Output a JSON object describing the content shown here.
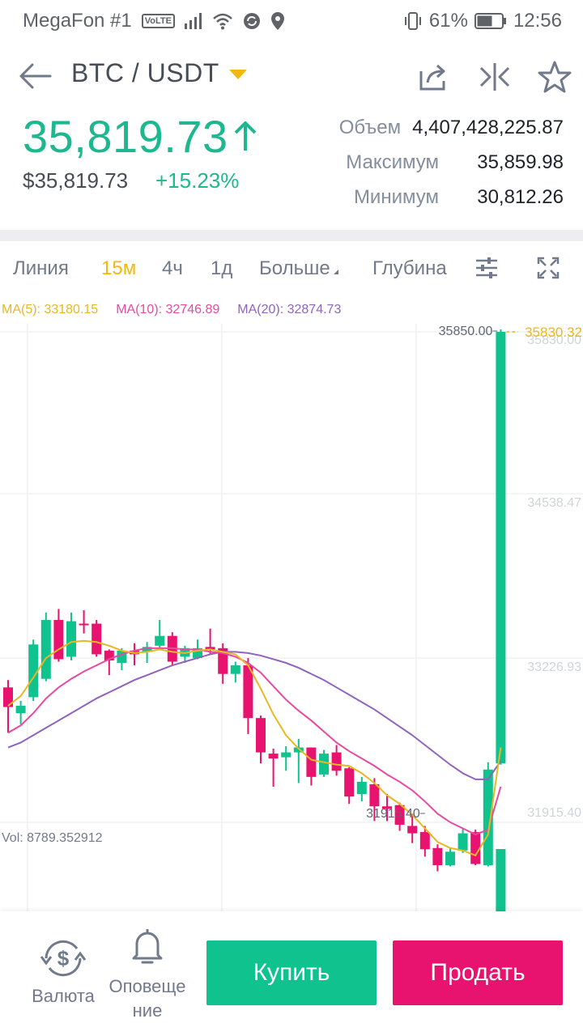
{
  "status_bar": {
    "carrier": "MegaFon #1",
    "volte": "VoLTE",
    "battery": "61%",
    "time": "12:56"
  },
  "header": {
    "pair": "BTC / USDT",
    "icons": [
      "back-arrow-icon",
      "share-icon",
      "compare-icon",
      "star-icon"
    ]
  },
  "price": {
    "last": "35,819.73",
    "fiat": "$35,819.73",
    "change": "+15.23%",
    "up_color": "#1db88f"
  },
  "stats": [
    {
      "label": "Объем",
      "value": "4,407,428,225.87"
    },
    {
      "label": "Максимум",
      "value": "35,859.98"
    },
    {
      "label": "Минимум",
      "value": "30,812.26"
    }
  ],
  "tabs": {
    "line": "Линия",
    "m15": "15м",
    "h4": "4ч",
    "d1": "1д",
    "more": "Больше",
    "depth": "Глубина"
  },
  "ma": {
    "ma5": "MA(5): 33180.15",
    "ma10": "MA(10): 32746.89",
    "ma20": "MA(20): 32874.73"
  },
  "chart_data": {
    "type": "candlestick",
    "y_axis_ticks": [
      "35830.00",
      "34538.47",
      "33226.93",
      "31915.40"
    ],
    "high_label": "35850.00",
    "low_label": "31915.40",
    "last_price_label": "35830.32",
    "colors": {
      "up": "#10c28d",
      "down": "#e8136e",
      "ma5": "#e8b823",
      "ma10": "#e64aa1",
      "ma20": "#9063bf"
    },
    "candles": [
      {
        "o": 32930,
        "c": 32770,
        "h": 32990,
        "l": 32560
      },
      {
        "o": 32720,
        "c": 32780,
        "h": 32820,
        "l": 32630
      },
      {
        "o": 32850,
        "c": 33280,
        "h": 33320,
        "l": 32820
      },
      {
        "o": 33000,
        "c": 33480,
        "h": 33540,
        "l": 32980
      },
      {
        "o": 33480,
        "c": 33160,
        "h": 33570,
        "l": 33140
      },
      {
        "o": 33180,
        "c": 33470,
        "h": 33540,
        "l": 33150
      },
      {
        "o": 33450,
        "c": 33440,
        "h": 33560,
        "l": 33370
      },
      {
        "o": 33450,
        "c": 33200,
        "h": 33480,
        "l": 33180
      },
      {
        "o": 33230,
        "c": 33150,
        "h": 33240,
        "l": 33030
      },
      {
        "o": 33130,
        "c": 33230,
        "h": 33250,
        "l": 33070
      },
      {
        "o": 33230,
        "c": 33200,
        "h": 33290,
        "l": 33110
      },
      {
        "o": 33220,
        "c": 33260,
        "h": 33300,
        "l": 33130
      },
      {
        "o": 33270,
        "c": 33350,
        "h": 33480,
        "l": 33250
      },
      {
        "o": 33350,
        "c": 33140,
        "h": 33380,
        "l": 33110
      },
      {
        "o": 33180,
        "c": 33250,
        "h": 33270,
        "l": 33130
      },
      {
        "o": 33170,
        "c": 33250,
        "h": 33320,
        "l": 33160
      },
      {
        "o": 33260,
        "c": 33240,
        "h": 33410,
        "l": 33200
      },
      {
        "o": 33250,
        "c": 33040,
        "h": 33290,
        "l": 32960
      },
      {
        "o": 33040,
        "c": 33110,
        "h": 33140,
        "l": 32970
      },
      {
        "o": 33110,
        "c": 32680,
        "h": 33170,
        "l": 32550
      },
      {
        "o": 32680,
        "c": 32400,
        "h": 32700,
        "l": 32310
      },
      {
        "o": 32390,
        "c": 32350,
        "h": 32430,
        "l": 32120
      },
      {
        "o": 32360,
        "c": 32400,
        "h": 32450,
        "l": 32250
      },
      {
        "o": 32400,
        "c": 32440,
        "h": 32510,
        "l": 32150
      },
      {
        "o": 32440,
        "c": 32200,
        "h": 32440,
        "l": 32130
      },
      {
        "o": 32220,
        "c": 32390,
        "h": 32420,
        "l": 32200
      },
      {
        "o": 32400,
        "c": 32250,
        "h": 32460,
        "l": 32210
      },
      {
        "o": 32270,
        "c": 32040,
        "h": 32280,
        "l": 31980
      },
      {
        "o": 32060,
        "c": 32160,
        "h": 32200,
        "l": 32000
      },
      {
        "o": 32140,
        "c": 31960,
        "h": 32190,
        "l": 31840
      },
      {
        "o": 31960,
        "c": 31940,
        "h": 32060,
        "l": 31840
      },
      {
        "o": 31970,
        "c": 31810,
        "h": 31990,
        "l": 31760
      },
      {
        "o": 31800,
        "c": 31740,
        "h": 31900,
        "l": 31660
      },
      {
        "o": 31750,
        "c": 31610,
        "h": 31800,
        "l": 31550
      },
      {
        "o": 31620,
        "c": 31480,
        "h": 31650,
        "l": 31430
      },
      {
        "o": 31480,
        "c": 31590,
        "h": 31620,
        "l": 31470
      },
      {
        "o": 31600,
        "c": 31740,
        "h": 31780,
        "l": 31580
      },
      {
        "o": 31750,
        "c": 31490,
        "h": 31770,
        "l": 31480
      },
      {
        "o": 31480,
        "c": 32260,
        "h": 32320,
        "l": 31470
      },
      {
        "o": 32310,
        "c": 35830,
        "h": 35850,
        "l": 32300
      }
    ],
    "ma5": [
      32780,
      32860,
      33010,
      33170,
      33240,
      33300,
      33310,
      33300,
      33270,
      33230,
      33210,
      33220,
      33240,
      33220,
      33210,
      33230,
      33240,
      33220,
      33200,
      33110,
      32920,
      32710,
      32540,
      32430,
      32340,
      32320,
      32300,
      32290,
      32230,
      32150,
      32050,
      31980,
      31890,
      31780,
      31670,
      31620,
      31600,
      31560,
      31730,
      32440
    ],
    "ma10": [
      32560,
      32620,
      32720,
      32840,
      32930,
      33000,
      33060,
      33110,
      33160,
      33200,
      33230,
      33250,
      33250,
      33250,
      33240,
      33240,
      33220,
      33210,
      33180,
      33130,
      33050,
      32940,
      32830,
      32740,
      32660,
      32570,
      32480,
      32410,
      32350,
      32290,
      32220,
      32160,
      32090,
      32000,
      31900,
      31830,
      31780,
      31730,
      31770,
      32120
    ],
    "ma20": [
      32440,
      32480,
      32540,
      32600,
      32660,
      32720,
      32780,
      32840,
      32890,
      32940,
      32990,
      33030,
      33070,
      33110,
      33140,
      33170,
      33200,
      33220,
      33220,
      33210,
      33190,
      33160,
      33130,
      33090,
      33040,
      32990,
      32930,
      32870,
      32810,
      32750,
      32680,
      32610,
      32540,
      32460,
      32380,
      32300,
      32230,
      32180,
      32180,
      32330
    ],
    "vol_label": "Vol: 8789.352912"
  },
  "bottom": {
    "currency": "Валюта",
    "alerts_line1": "Оповеще",
    "alerts_line2": "ние",
    "buy": "Купить",
    "sell": "Продать"
  }
}
